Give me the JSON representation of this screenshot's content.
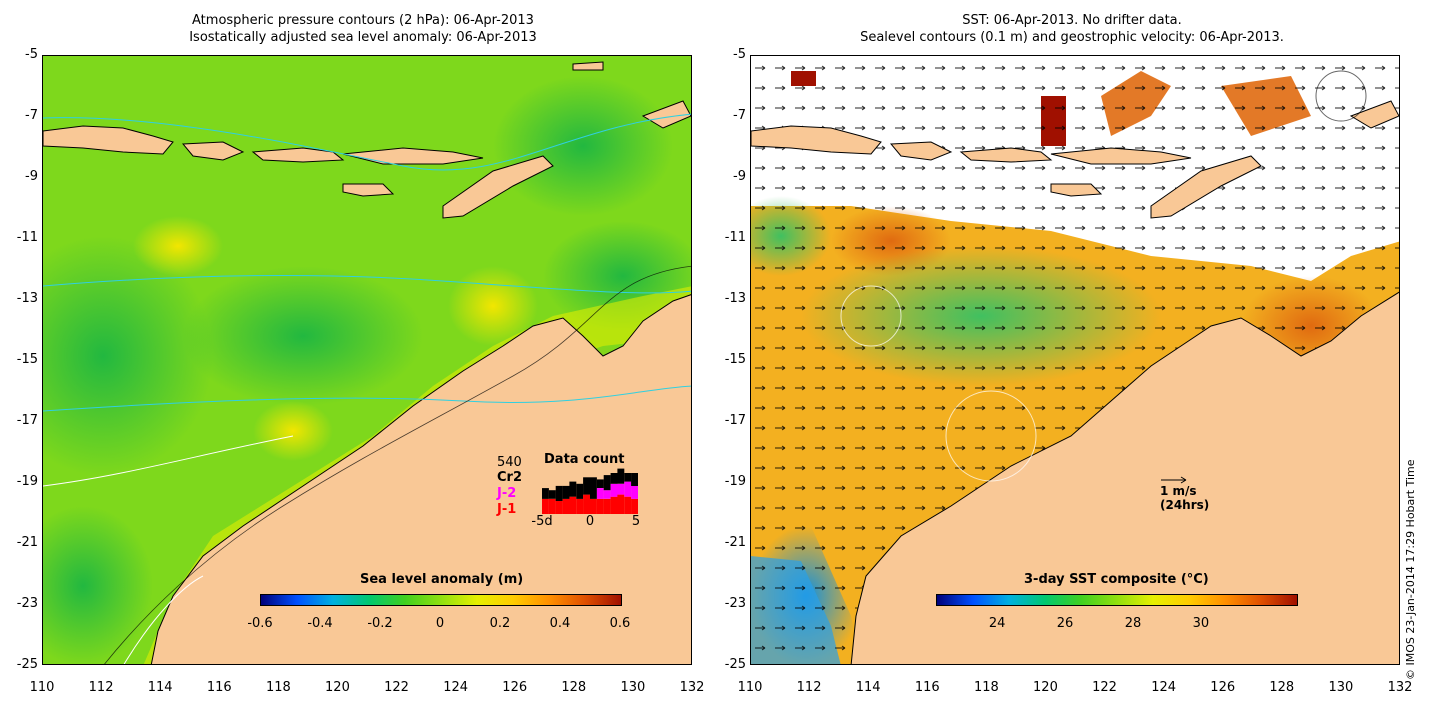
{
  "left_panel": {
    "title_line1": "Atmospheric pressure contours (2 hPa): 06-Apr-2013",
    "title_line2": "Isostatically adjusted sea level anomaly: 06-Apr-2013",
    "x_ticks": [
      "110",
      "112",
      "114",
      "116",
      "118",
      "120",
      "122",
      "124",
      "126",
      "128",
      "130",
      "132"
    ],
    "y_ticks": [
      "-5",
      "-7",
      "-9",
      "-11",
      "-13",
      "-15",
      "-17",
      "-19",
      "-21",
      "-23",
      "-25"
    ],
    "colorbar": {
      "label": "Sea level anomaly (m)",
      "ticks": [
        "-0.6",
        "-0.4",
        "-0.2",
        "0",
        "0.2",
        "0.4",
        "0.6"
      ]
    },
    "data_count": {
      "title": "Data count",
      "total": "540",
      "legend": [
        {
          "label": "Cr2",
          "color": "#000000"
        },
        {
          "label": "J-2",
          "color": "#ff00ff"
        },
        {
          "label": "J-1",
          "color": "#ff0000"
        }
      ],
      "x_ticks": [
        "-5d",
        "0",
        "5"
      ],
      "bars": [
        {
          "j1": 0.35,
          "j2": 0.0,
          "cr2": 0.25
        },
        {
          "j1": 0.35,
          "j2": 0.0,
          "cr2": 0.2
        },
        {
          "j1": 0.3,
          "j2": 0.0,
          "cr2": 0.35
        },
        {
          "j1": 0.35,
          "j2": 0.0,
          "cr2": 0.3
        },
        {
          "j1": 0.4,
          "j2": 0.0,
          "cr2": 0.35
        },
        {
          "j1": 0.35,
          "j2": 0.0,
          "cr2": 0.35
        },
        {
          "j1": 0.45,
          "j2": 0.0,
          "cr2": 0.4
        },
        {
          "j1": 0.35,
          "j2": 0.0,
          "cr2": 0.5
        },
        {
          "j1": 0.35,
          "j2": 0.25,
          "cr2": 0.2
        },
        {
          "j1": 0.35,
          "j2": 0.2,
          "cr2": 0.35
        },
        {
          "j1": 0.4,
          "j2": 0.3,
          "cr2": 0.25
        },
        {
          "j1": 0.45,
          "j2": 0.25,
          "cr2": 0.35
        },
        {
          "j1": 0.4,
          "j2": 0.35,
          "cr2": 0.2
        },
        {
          "j1": 0.35,
          "j2": 0.3,
          "cr2": 0.3
        }
      ]
    }
  },
  "right_panel": {
    "title_line1": "SST: 06-Apr-2013. No drifter data.",
    "title_line2": "Sealevel contours (0.1 m) and geostrophic velocity: 06-Apr-2013.",
    "x_ticks": [
      "110",
      "112",
      "114",
      "116",
      "118",
      "120",
      "122",
      "124",
      "126",
      "128",
      "130",
      "132"
    ],
    "y_ticks": [
      "-5",
      "-7",
      "-9",
      "-11",
      "-13",
      "-15",
      "-17",
      "-19",
      "-21",
      "-23",
      "-25"
    ],
    "colorbar": {
      "label": "3-day SST composite (°C)",
      "ticks": [
        "24",
        "26",
        "28",
        "30"
      ]
    },
    "velocity_key": {
      "line1": "1 m/s",
      "line2": "(24hrs)"
    }
  },
  "copyright": "© IMOS 23-Jan-2014 17:29 Hobart Time",
  "colors": {
    "land": "#f9c896",
    "coast": "#000000",
    "no_data": "#ffffff",
    "sla_scale": [
      "#00007a",
      "#0050ff",
      "#00b0e0",
      "#00c870",
      "#40d020",
      "#90e010",
      "#e6f000",
      "#ffcc00",
      "#ff9000",
      "#e05000",
      "#a01000"
    ],
    "sst_scale": [
      "#00007a",
      "#0050ff",
      "#00b0e0",
      "#00c870",
      "#40d020",
      "#90e010",
      "#e6f000",
      "#ffcc00",
      "#ff9000",
      "#e05000",
      "#a01000"
    ]
  }
}
